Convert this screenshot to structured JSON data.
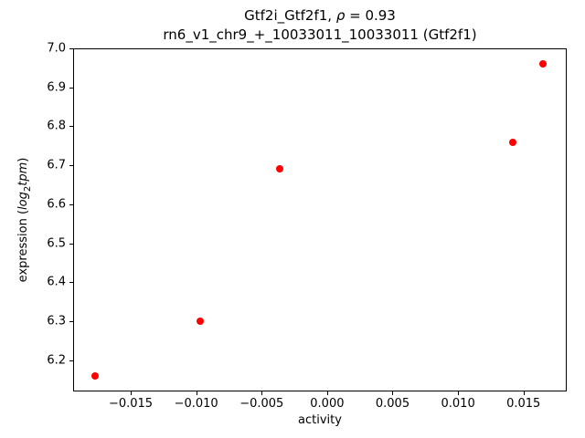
{
  "figure": {
    "title": {
      "line1_pre": "Gtf2i_Gtf2f1, ",
      "line1_rho": "ρ",
      "line1_post": " = 0.93",
      "line2": "rn6_v1_chr9_+_10033011_10033011 (Gtf2f1)"
    },
    "xlabel": "activity",
    "ylabel": {
      "pre": "expression (",
      "log": "log",
      "sub": "2",
      "tpm": "tpm",
      "post": ")"
    }
  },
  "chart_data": {
    "type": "scatter",
    "title": "Gtf2i_Gtf2f1, ρ = 0.93",
    "subtitle": "rn6_v1_chr9_+_10033011_10033011 (Gtf2f1)",
    "xlabel": "activity",
    "ylabel": "expression (log2 tpm)",
    "grid": false,
    "legend": false,
    "marker_color": "#ff0000",
    "marker_size_px": 8,
    "xlim": [
      -0.0194,
      0.0183
    ],
    "ylim": [
      6.12,
      7.0
    ],
    "xticks": [
      {
        "value": -0.015,
        "label": "−0.015"
      },
      {
        "value": -0.01,
        "label": "−0.010"
      },
      {
        "value": -0.005,
        "label": "−0.005"
      },
      {
        "value": 0.0,
        "label": "0.000"
      },
      {
        "value": 0.005,
        "label": "0.005"
      },
      {
        "value": 0.01,
        "label": "0.010"
      },
      {
        "value": 0.015,
        "label": "0.015"
      }
    ],
    "yticks": [
      {
        "value": 6.2,
        "label": "6.2"
      },
      {
        "value": 6.3,
        "label": "6.3"
      },
      {
        "value": 6.4,
        "label": "6.4"
      },
      {
        "value": 6.5,
        "label": "6.5"
      },
      {
        "value": 6.6,
        "label": "6.6"
      },
      {
        "value": 6.7,
        "label": "6.7"
      },
      {
        "value": 6.8,
        "label": "6.8"
      },
      {
        "value": 6.9,
        "label": "6.9"
      },
      {
        "value": 7.0,
        "label": "7.0"
      }
    ],
    "points": [
      {
        "x": -0.0177,
        "y": 6.16
      },
      {
        "x": -0.0097,
        "y": 6.3
      },
      {
        "x": -0.0036,
        "y": 6.69
      },
      {
        "x": 0.0142,
        "y": 6.76
      },
      {
        "x": 0.0165,
        "y": 6.96
      }
    ]
  }
}
